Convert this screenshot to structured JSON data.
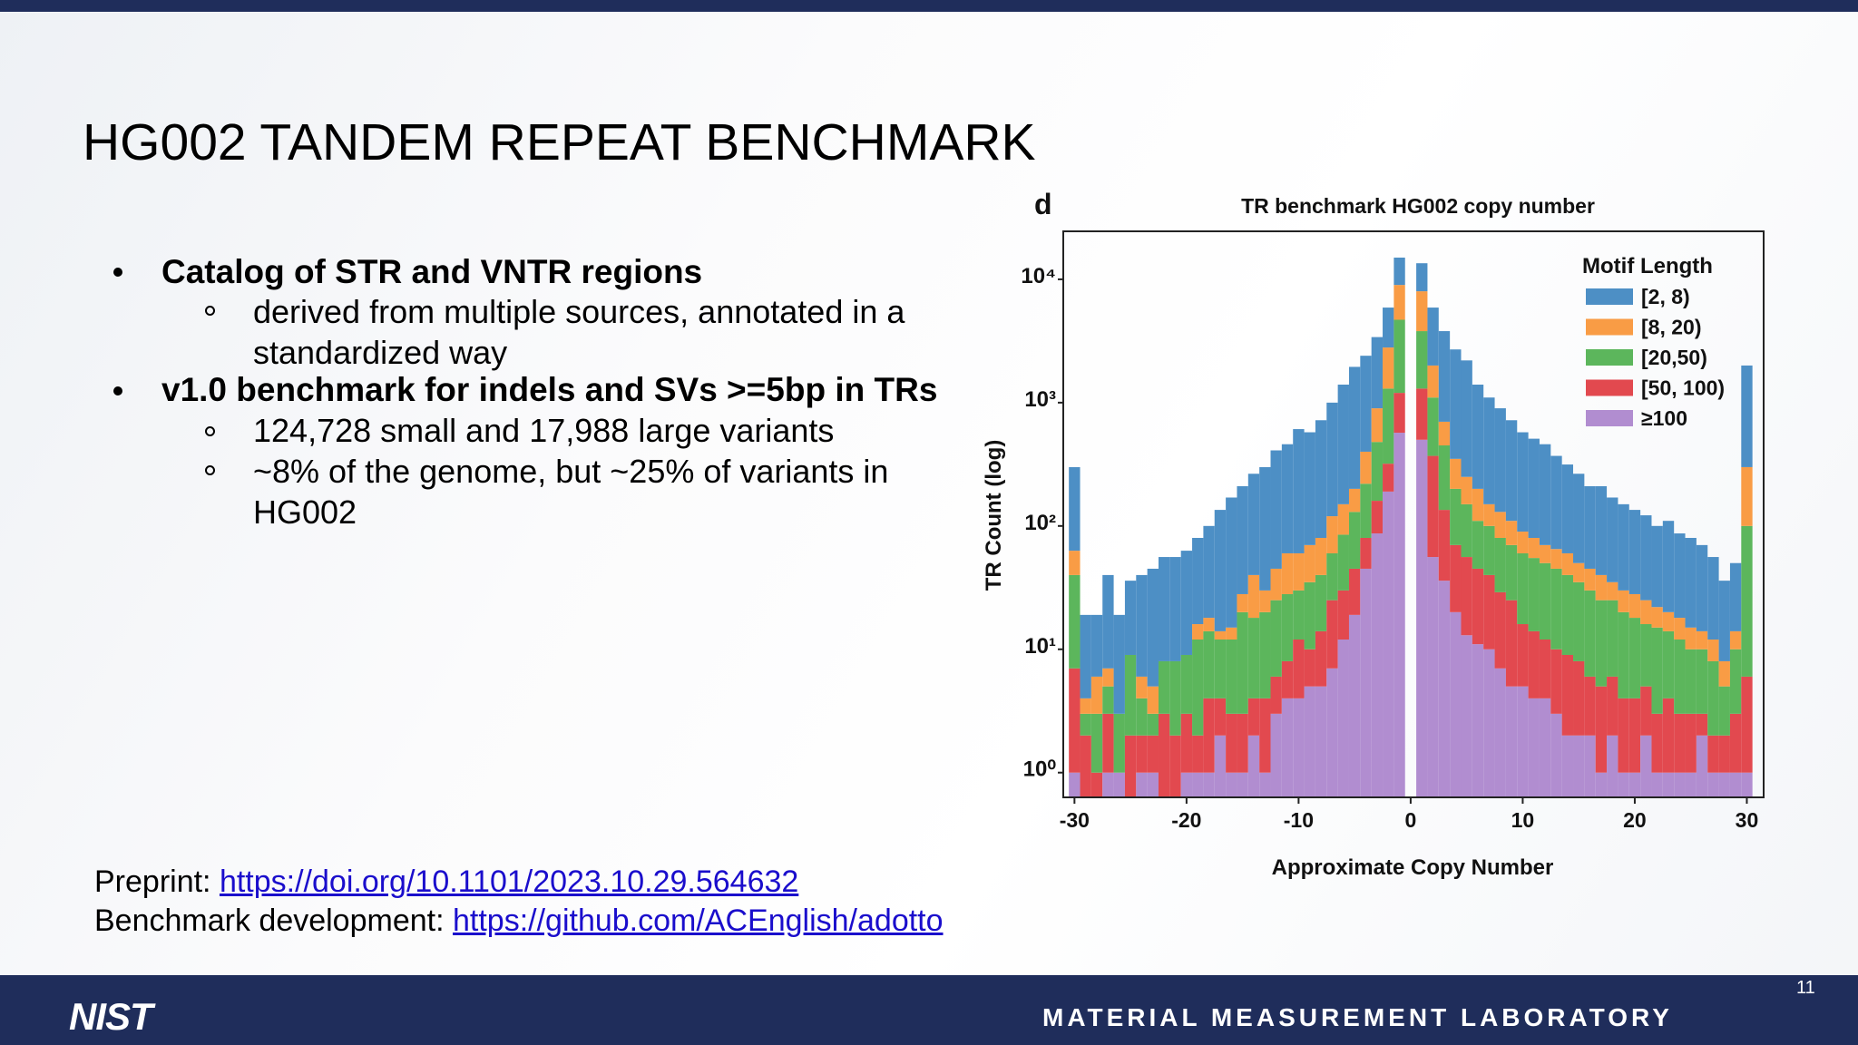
{
  "header": {
    "title": "HG002 TANDEM REPEAT BENCHMARK"
  },
  "bullets": [
    {
      "text": "Catalog of STR and VNTR regions",
      "sub": [
        "derived from multiple sources, annotated in a standardized way"
      ]
    },
    {
      "text": "v1.0 benchmark for indels and SVs >=5bp in TRs",
      "sub": [
        "124,728 small and 17,988 large variants",
        "~8% of the genome, but ~25% of variants in HG002"
      ]
    }
  ],
  "links": [
    {
      "label": "Preprint:",
      "url": "https://doi.org/10.1101/2023.10.29.564632"
    },
    {
      "label": "Benchmark development:",
      "url": "https://github.com/ACEnglish/adotto"
    }
  ],
  "footer": {
    "logo": "NIST",
    "lab": "MATERIAL MEASUREMENT LABORATORY",
    "page": "11"
  },
  "chart_data": {
    "type": "histogram",
    "panel": "d",
    "title": "TR benchmark HG002 copy number",
    "x_label": "Approximate Copy Number",
    "y_label": "TR Count (log)",
    "y_scale": "log",
    "legend_title": "Motif Length",
    "legend": "upper right",
    "bins": [
      -30.5,
      -29.5,
      -28.5,
      -27.5,
      -26.5,
      -25.5,
      -24.5,
      -23.5,
      -22.5,
      -21.5,
      -20.5,
      -19.5,
      -18.5,
      -17.5,
      -16.5,
      -15.5,
      -14.5,
      -13.5,
      -12.5,
      -11.5,
      -10.5,
      -9.5,
      -8.5,
      -7.5,
      -6.5,
      -5.5,
      -4.5,
      -3.5,
      -2.5,
      -1.5,
      -0.5,
      0.5,
      1.5,
      2.5,
      3.5,
      4.5,
      5.5,
      6.5,
      7.5,
      8.5,
      9.5,
      10.5,
      11.5,
      12.5,
      13.5,
      14.5,
      15.5,
      16.5,
      17.5,
      18.5,
      19.5,
      20.5,
      21.5,
      22.5,
      23.5,
      24.5,
      25.5,
      26.5,
      27.5,
      28.5,
      29.5,
      30.5
    ],
    "series": [
      {
        "name": "[2, 8)",
        "color": "#4d8fc5",
        "values": [
          237,
          15,
          13,
          33,
          16,
          27,
          34,
          40,
          48,
          48,
          54,
          64,
          82,
          121,
          155,
          182,
          225,
          270,
          365,
          400,
          550,
          505,
          640,
          880,
          1250,
          1750,
          2000,
          2500,
          3100,
          6000,
          0,
          5500,
          3900,
          3100,
          2350,
          1950,
          1200,
          950,
          770,
          610,
          485,
          430,
          390,
          305,
          255,
          215,
          165,
          170,
          135,
          120,
          107,
          97,
          78,
          90,
          69,
          65,
          56,
          44,
          28,
          36,
          1700
        ]
      },
      {
        "name": "[8, 20)",
        "color": "#f99c45",
        "values": [
          23,
          1,
          3,
          2,
          0,
          0,
          2,
          2,
          0,
          0,
          0,
          4,
          4,
          2,
          3,
          8,
          22,
          10,
          20,
          32,
          30,
          35,
          40,
          60,
          65,
          70,
          180,
          420,
          1500,
          4300,
          0,
          4200,
          900,
          250,
          150,
          100,
          90,
          50,
          50,
          40,
          30,
          25,
          20,
          20,
          20,
          15,
          15,
          15,
          10,
          10,
          10,
          9,
          7,
          6,
          6,
          5,
          4,
          4,
          3,
          4,
          200
        ]
      },
      {
        "name": "[20,50)",
        "color": "#5cb65c",
        "values": [
          33,
          1,
          2,
          2,
          2,
          7,
          2,
          1,
          5,
          6,
          6,
          10,
          10,
          8,
          9,
          17,
          14,
          16,
          19,
          20,
          18,
          25,
          26,
          35,
          55,
          85,
          140,
          320,
          980,
          3500,
          0,
          2500,
          730,
          315,
          130,
          94,
          65,
          60,
          51,
          45,
          44,
          41,
          38,
          35,
          31,
          27,
          24,
          20,
          19,
          16,
          14,
          11,
          12,
          10,
          9,
          7,
          7,
          6,
          3,
          7,
          94
        ]
      },
      {
        "name": "[50, 100)",
        "color": "#e2494f",
        "values": [
          6,
          2,
          1,
          2,
          0,
          2,
          1,
          1,
          3,
          2,
          2,
          1,
          3,
          2,
          2,
          2,
          2,
          3,
          3,
          4,
          8,
          5,
          9,
          18,
          18,
          26,
          35,
          73,
          130,
          630,
          0,
          800,
          314,
          99,
          50,
          43,
          34,
          30,
          22,
          20,
          11,
          10,
          8,
          7,
          7,
          6,
          4,
          4,
          4,
          3,
          3,
          3,
          2,
          3,
          2,
          2,
          1,
          1,
          1,
          2,
          5
        ]
      },
      {
        "name": "≥100",
        "color": "#b18dd0",
        "values": [
          1,
          0,
          0,
          1,
          1,
          0,
          1,
          1,
          0,
          0,
          1,
          1,
          1,
          2,
          1,
          1,
          2,
          1,
          3,
          4,
          4,
          5,
          5,
          7,
          12,
          19,
          45,
          87,
          190,
          570,
          0,
          500,
          56,
          36,
          20,
          13,
          11,
          10,
          7,
          5,
          5,
          4,
          4,
          3,
          2,
          2,
          2,
          1,
          2,
          1,
          1,
          2,
          1,
          1,
          1,
          1,
          2,
          1,
          1,
          1,
          1
        ]
      }
    ],
    "xlim": [
      -31,
      31.5
    ],
    "xticks": [
      -30,
      -20,
      -10,
      0,
      10,
      20,
      30
    ],
    "ylim": [
      0.63,
      24500
    ],
    "yticks": [
      {
        "value": 1,
        "label": "10⁰"
      },
      {
        "value": 10,
        "label": "10¹"
      },
      {
        "value": 100,
        "label": "10²"
      },
      {
        "value": 1000,
        "label": "10³"
      },
      {
        "value": 10000,
        "label": "10⁴"
      }
    ]
  }
}
